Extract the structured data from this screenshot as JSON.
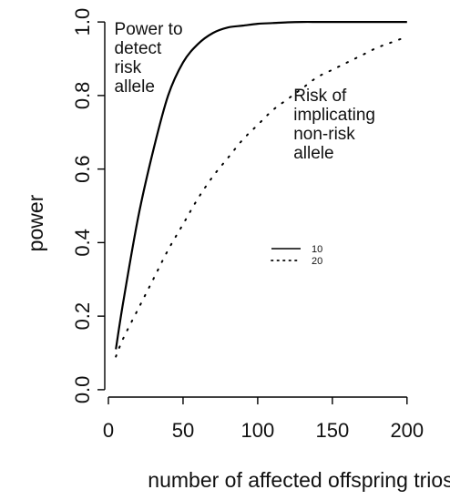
{
  "chart_data": {
    "type": "line",
    "title": "",
    "xlabel": "number of affected offspring trios",
    "ylabel": "power",
    "xlim": [
      0,
      205
    ],
    "ylim": [
      -0.03,
      1.03
    ],
    "x_ticks": [
      0,
      50,
      100,
      150,
      200
    ],
    "y_ticks": [
      0.0,
      0.2,
      0.4,
      0.6,
      0.8,
      1.0
    ],
    "x_tick_labels": [
      "0",
      "50",
      "100",
      "150",
      "200"
    ],
    "y_tick_labels": [
      "0.0",
      "0.2",
      "0.4",
      "0.6",
      "0.8",
      "1.0"
    ],
    "grid": false,
    "legend_position": "center-right",
    "series": [
      {
        "name": "10",
        "line_style": "solid",
        "color": "#000000",
        "x": [
          5,
          10,
          20,
          30,
          40,
          50,
          60,
          70,
          80,
          90,
          100,
          110,
          120,
          130,
          140,
          150,
          160,
          170,
          180,
          190,
          200
        ],
        "y": [
          0.11,
          0.24,
          0.47,
          0.65,
          0.8,
          0.89,
          0.94,
          0.97,
          0.985,
          0.99,
          0.995,
          0.997,
          0.999,
          1.0,
          1.0,
          1.0,
          1.0,
          1.0,
          1.0,
          1.0,
          1.0
        ]
      },
      {
        "name": "20",
        "line_style": "dotted",
        "color": "#000000",
        "x": [
          5,
          10,
          20,
          30,
          40,
          50,
          60,
          70,
          80,
          90,
          100,
          110,
          120,
          130,
          140,
          150,
          160,
          170,
          180,
          190,
          200
        ],
        "y": [
          0.09,
          0.14,
          0.22,
          0.3,
          0.38,
          0.45,
          0.52,
          0.58,
          0.63,
          0.68,
          0.72,
          0.76,
          0.79,
          0.82,
          0.85,
          0.87,
          0.89,
          0.91,
          0.93,
          0.945,
          0.96
        ]
      }
    ],
    "annotations": [
      {
        "name": "annot-power-to-detect",
        "lines": [
          "Power to",
          "detect",
          "risk",
          "allele"
        ],
        "x": 4,
        "y": 0.965
      },
      {
        "name": "annot-risk-of-implicating",
        "lines": [
          "Risk of",
          "implicating",
          "non-risk",
          "allele"
        ],
        "x": 124,
        "y": 0.785
      }
    ]
  }
}
